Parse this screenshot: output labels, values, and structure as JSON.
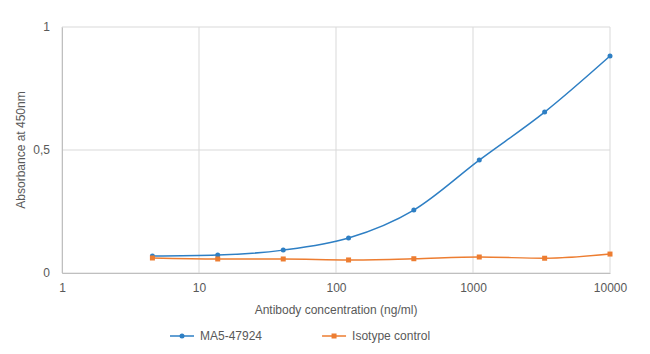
{
  "chart_data": {
    "type": "line",
    "x_label": "Antibody concentration (ng/ml)",
    "y_label": "Absorbance at 450nm",
    "x": [
      4.57,
      13.7,
      41.2,
      123.5,
      370,
      1111,
      3333,
      10000
    ],
    "series": [
      {
        "name": "MA5-47924",
        "color": "#2e7fc4",
        "marker": "circle",
        "line_style": "solid",
        "values": [
          0.069,
          0.073,
          0.093,
          0.142,
          0.256,
          0.459,
          0.654,
          0.882
        ]
      },
      {
        "name": "Isotype control",
        "color": "#ed7d31",
        "marker": "square",
        "line_style": "solid",
        "values": [
          0.061,
          0.057,
          0.057,
          0.053,
          0.058,
          0.065,
          0.06,
          0.077
        ]
      }
    ],
    "xlim": [
      1,
      10000
    ],
    "xticks": [
      1,
      10,
      100,
      1000,
      10000
    ],
    "ylim": [
      0,
      1
    ],
    "yticks": [
      0,
      {
        "value": 0.5,
        "label": "0,5"
      },
      1
    ],
    "log": "x",
    "grid": true,
    "legend": "bottom"
  }
}
